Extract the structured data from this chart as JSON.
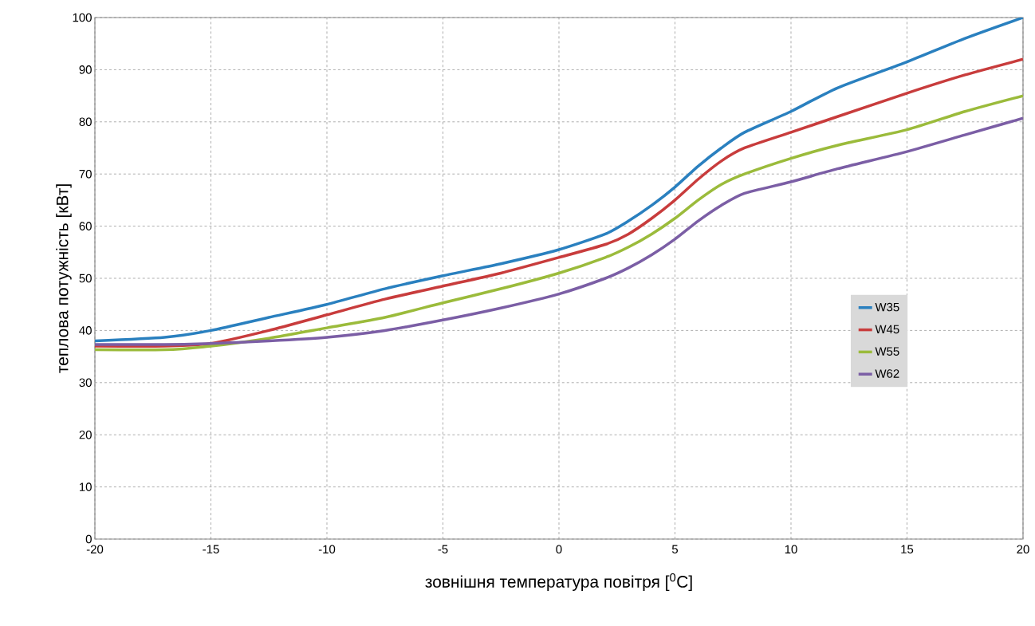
{
  "chart_data": {
    "type": "line",
    "xlabel": "зовнішня температура повітря [$^{0}$C]",
    "ylabel": "теплова потужність [кВт]",
    "x": [
      -20,
      -17,
      -15,
      -12.5,
      -10,
      -7.5,
      -5,
      -2.5,
      0,
      2,
      3,
      4,
      5,
      6,
      7,
      8,
      10,
      12,
      15,
      17.5,
      20
    ],
    "series": [
      {
        "name": "W35",
        "color": "#2a80bf",
        "values": [
          38,
          38.7,
          40,
          42.5,
          45,
          48,
          50.5,
          52.8,
          55.5,
          58.5,
          61,
          64,
          67.5,
          71.5,
          75,
          78,
          82,
          86.5,
          91.5,
          96,
          100
        ]
      },
      {
        "name": "W45",
        "color": "#c83c3c",
        "values": [
          37,
          37,
          37.5,
          40,
          43,
          46,
          48.5,
          51,
          54,
          56.5,
          58.5,
          61.5,
          65,
          69,
          72.5,
          75,
          78,
          81,
          85.5,
          89,
          92
        ]
      },
      {
        "name": "W55",
        "color": "#9bbb3b",
        "values": [
          36.3,
          36.3,
          37,
          38.5,
          40.5,
          42.5,
          45.3,
          48,
          51,
          54,
          56,
          58.5,
          61.5,
          65,
          68,
          70,
          73,
          75.5,
          78.5,
          82,
          85
        ]
      },
      {
        "name": "W62",
        "color": "#7b5ea5",
        "values": [
          37.3,
          37.3,
          37.5,
          38,
          38.7,
          40,
          42,
          44.3,
          47,
          50,
          52,
          54.5,
          57.5,
          61,
          64,
          66.3,
          68.5,
          71,
          74.3,
          77.5,
          80.7
        ]
      }
    ],
    "xlim": [
      -20,
      20
    ],
    "ylim": [
      0,
      100
    ],
    "xticks": [
      -20,
      -15,
      -10,
      -5,
      0,
      5,
      10,
      15,
      20
    ],
    "yticks": [
      0,
      10,
      20,
      30,
      40,
      50,
      60,
      70,
      80,
      90,
      100
    ],
    "grid": true,
    "legend": "right",
    "marker": "none",
    "line_style": "solid"
  }
}
